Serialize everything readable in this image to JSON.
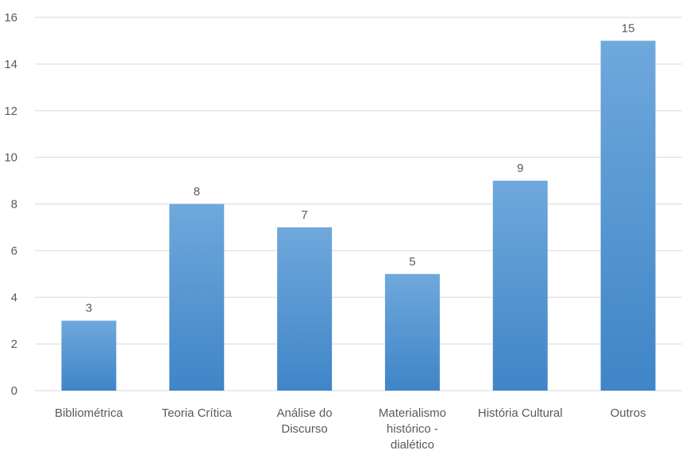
{
  "chart_data": {
    "type": "bar",
    "categories": [
      [
        "Bibliométrica"
      ],
      [
        "Teoria Crítica"
      ],
      [
        "Análise do",
        "Discurso"
      ],
      [
        "Materialismo",
        "histórico -",
        "dialético"
      ],
      [
        "História Cultural"
      ],
      [
        "Outros"
      ]
    ],
    "values": [
      3,
      8,
      7,
      5,
      9,
      15
    ],
    "ylim": [
      0,
      16
    ],
    "yticks": [
      0,
      2,
      4,
      6,
      8,
      10,
      12,
      14,
      16
    ],
    "grid": true,
    "data_labels": true,
    "colors": {
      "bar_top": "#6fa8dc",
      "bar_bottom": "#3f85c7",
      "grid": "#d9d9d9",
      "text": "#595959"
    }
  }
}
